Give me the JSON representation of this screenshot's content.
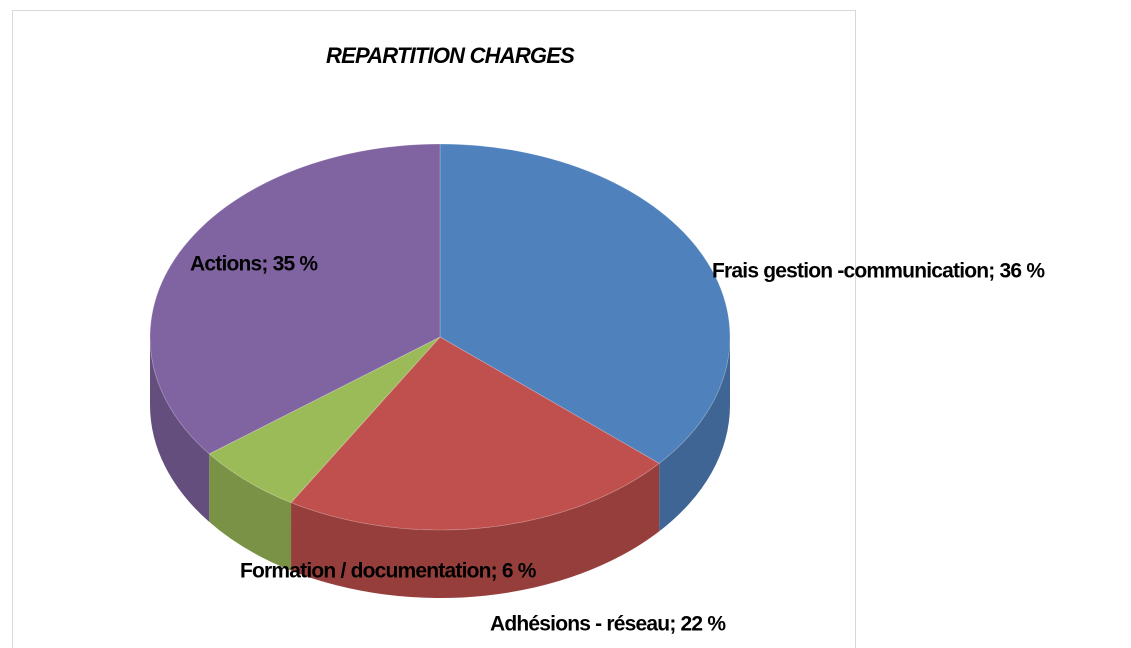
{
  "chart_data": {
    "type": "pie3d",
    "title": "REPARTITION CHARGES",
    "values": [
      36,
      22,
      6,
      35
    ],
    "value_labels": [
      "Frais gestion -communication; 36 %",
      "Adhésions - réseau; 22 %",
      "Formation / documentation; 6 %",
      "Actions; 35 %"
    ],
    "colors": [
      "#4f81bd",
      "#c0504d",
      "#9bbb59",
      "#8064a2"
    ]
  }
}
